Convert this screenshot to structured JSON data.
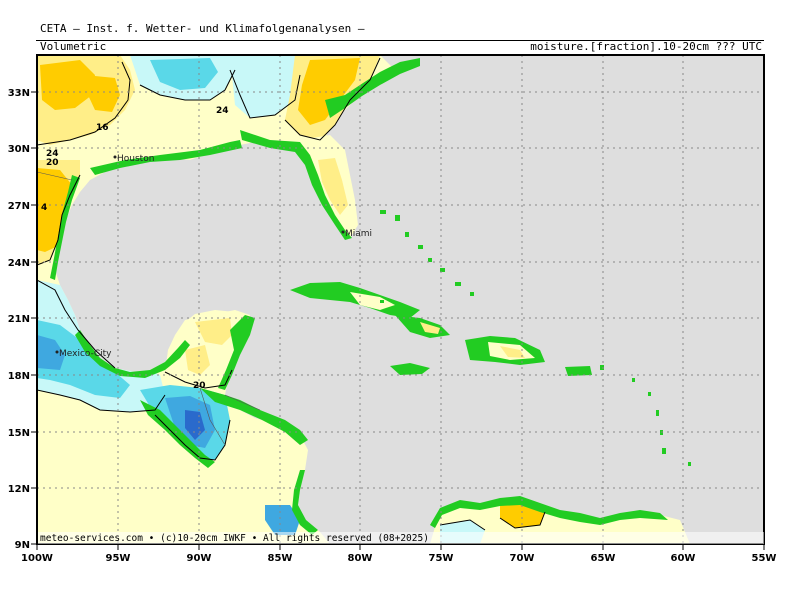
{
  "header": {
    "org_title": "CETA — Inst. f. Wetter- und Klimafolgenanalysen —",
    "product_name": "Volumetric",
    "product_desc": "moisture.[fraction].10-20cm ??? UTC"
  },
  "map": {
    "lon_ticks": [
      "100W",
      "95W",
      "90W",
      "85W",
      "80W",
      "75W",
      "70W",
      "65W",
      "60W",
      "55W"
    ],
    "lat_ticks": [
      "33N",
      "30N",
      "27N",
      "24N",
      "21N",
      "18N",
      "15N",
      "12N",
      "9N"
    ],
    "cities": [
      {
        "name": "Houston"
      },
      {
        "name": "Miami"
      },
      {
        "name": "Mexico-City"
      }
    ],
    "contour_labels": [
      "16",
      "24",
      "24",
      "20",
      "4",
      "20"
    ],
    "copyright": "meteo-services.com • (c)10-20cm IWKF • All rights reserved (08+2025)",
    "colors": {
      "ocean": "#dedede",
      "coast_green": "#22cc22",
      "dry_orange": "#ffcc00",
      "dry_yellow": "#ffee88",
      "moist_cream": "#ffffc8",
      "moist_cyan": "#c8f8f8",
      "wet_cyan": "#5ad8e8",
      "very_wet_blue": "#3fa8e0",
      "deep_blue": "#2a6acc"
    }
  }
}
